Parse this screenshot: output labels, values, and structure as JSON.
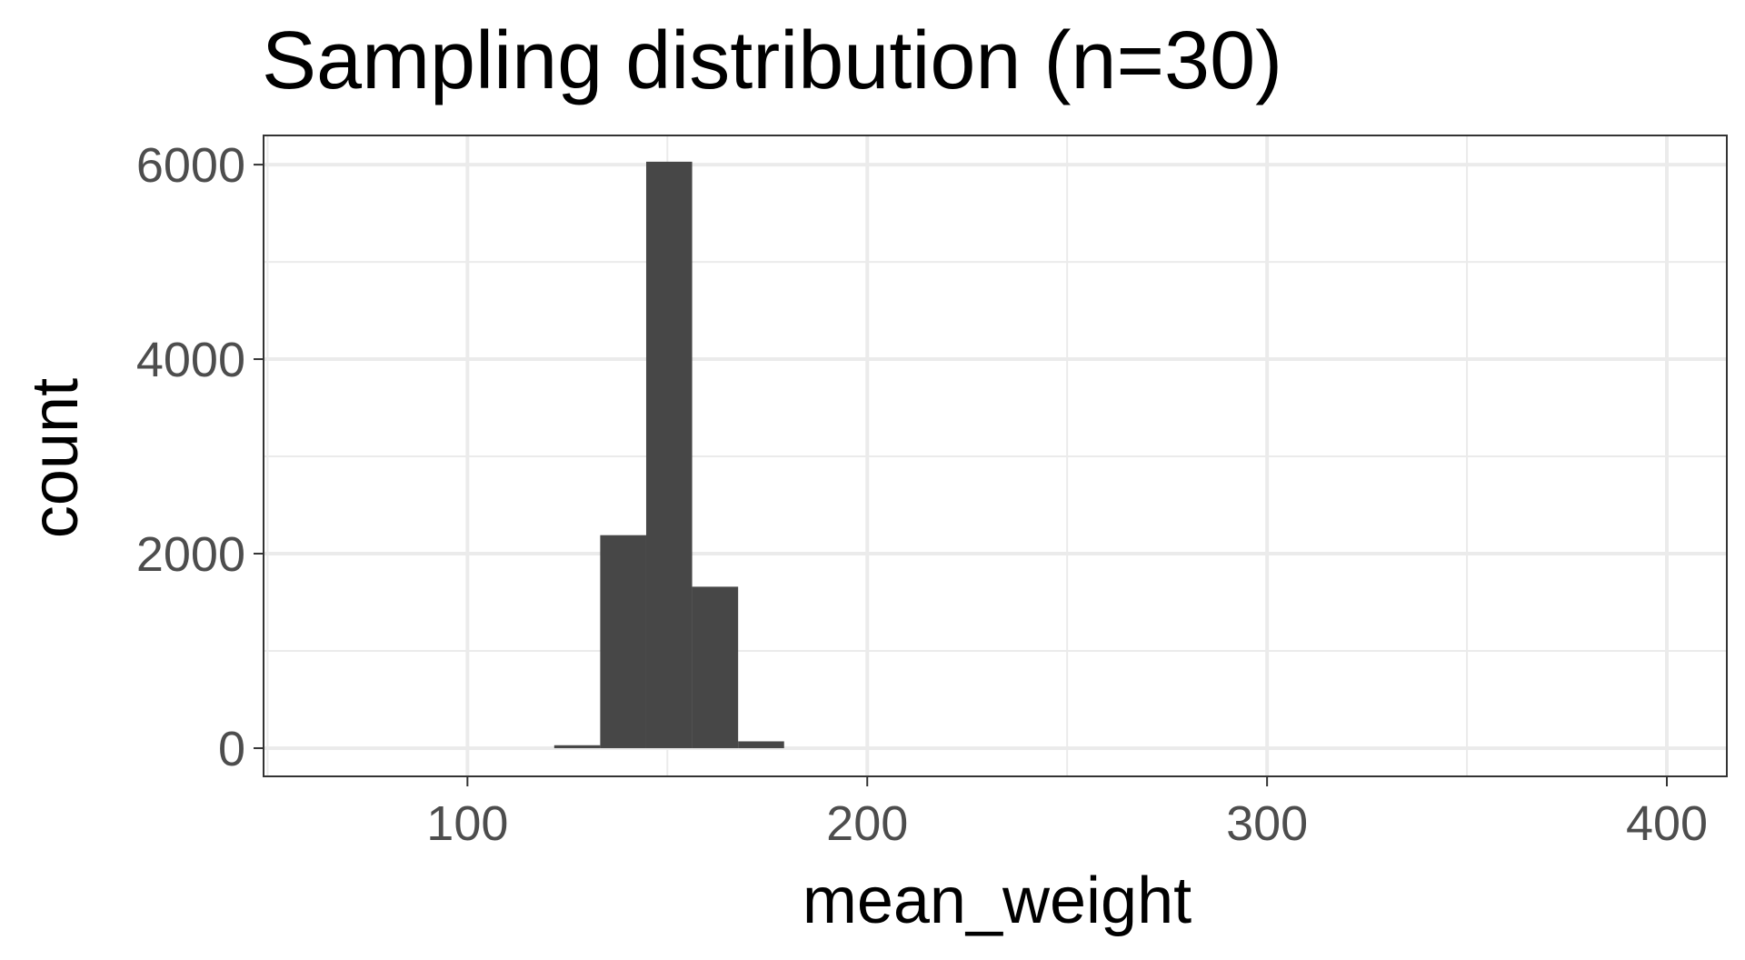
{
  "chart_data": {
    "type": "histogram",
    "title": "Sampling distribution (n=30)",
    "xlabel": "mean_weight",
    "ylabel": "count",
    "xlim": [
      49,
      415
    ],
    "ylim": [
      -290,
      6300
    ],
    "x_ticks": [
      100,
      200,
      300,
      400
    ],
    "x_minor_ticks": [
      50,
      150,
      250,
      350
    ],
    "y_ticks": [
      0,
      2000,
      4000,
      6000
    ],
    "y_minor_ticks": [
      1000,
      3000,
      5000
    ],
    "bins": [
      {
        "x_start": 121.7,
        "x_end": 133.2,
        "count": 30
      },
      {
        "x_start": 133.2,
        "x_end": 144.7,
        "count": 2190
      },
      {
        "x_start": 144.7,
        "x_end": 156.2,
        "count": 6030
      },
      {
        "x_start": 156.2,
        "x_end": 167.7,
        "count": 1660
      },
      {
        "x_start": 167.7,
        "x_end": 179.2,
        "count": 70
      }
    ],
    "bar_color": "#474747",
    "panel_border_color": "#333333",
    "grid": true,
    "grid_color": "#ebebeb"
  }
}
